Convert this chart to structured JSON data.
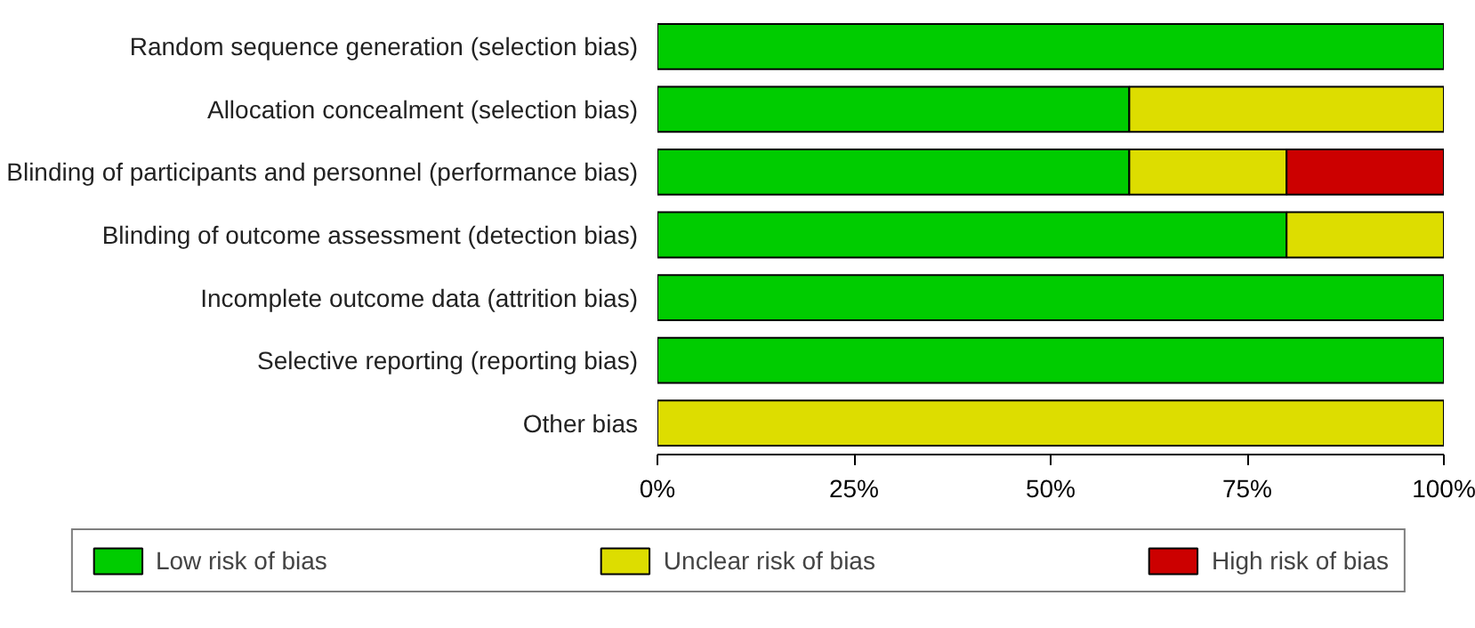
{
  "chart_data": {
    "type": "bar",
    "orientation": "horizontal",
    "stacked": true,
    "categories": [
      "Random sequence generation (selection bias)",
      "Allocation concealment (selection bias)",
      "Blinding of participants and personnel (performance bias)",
      "Blinding of outcome assessment (detection bias)",
      "Incomplete outcome data (attrition bias)",
      "Selective reporting (reporting bias)",
      "Other bias"
    ],
    "series": [
      {
        "name": "Low risk of bias",
        "color": "#00cc00",
        "values": [
          100,
          60,
          60,
          80,
          100,
          100,
          0
        ]
      },
      {
        "name": "Unclear risk of bias",
        "color": "#dddd00",
        "values": [
          0,
          40,
          20,
          20,
          0,
          0,
          100
        ]
      },
      {
        "name": "High risk of bias",
        "color": "#cc0000",
        "values": [
          0,
          0,
          20,
          0,
          0,
          0,
          0
        ]
      }
    ],
    "xlim": [
      0,
      100
    ],
    "xticks": [
      {
        "value": 0,
        "label": "0%"
      },
      {
        "value": 25,
        "label": "25%"
      },
      {
        "value": 50,
        "label": "50%"
      },
      {
        "value": 75,
        "label": "75%"
      },
      {
        "value": 100,
        "label": "100%"
      }
    ],
    "grid": false,
    "legend": "bottom"
  }
}
